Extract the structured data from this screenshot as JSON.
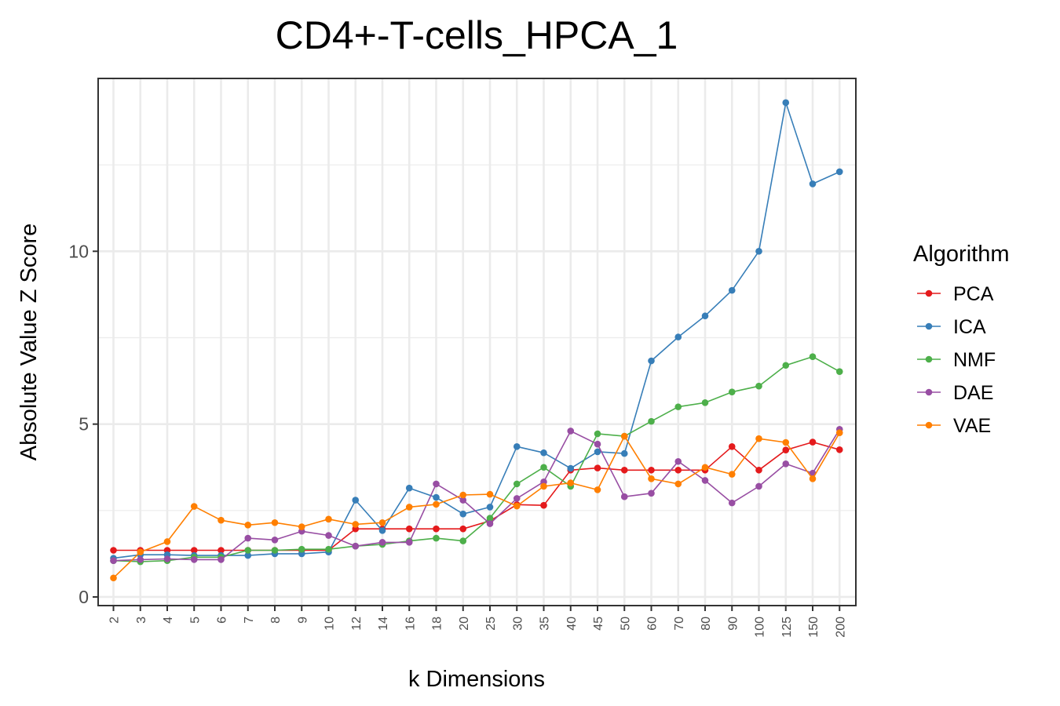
{
  "chart_data": {
    "type": "line",
    "title": "CD4+-T-cells_HPCA_1",
    "xlabel": "k Dimensions",
    "ylabel": "Absolute Value Z Score",
    "x_scale": "categorical",
    "categories": [
      "2",
      "3",
      "4",
      "5",
      "6",
      "7",
      "8",
      "9",
      "10",
      "12",
      "14",
      "16",
      "18",
      "20",
      "25",
      "30",
      "35",
      "40",
      "45",
      "50",
      "60",
      "70",
      "80",
      "90",
      "100",
      "125",
      "150",
      "200"
    ],
    "ylim": [
      -0.25,
      15.0
    ],
    "yticks": [
      0,
      5,
      10
    ],
    "y_minor_ticks": [
      2.5,
      7.5,
      12.5
    ],
    "grid": true,
    "legend": {
      "title": "Algorithm",
      "placement": "right"
    },
    "series": [
      {
        "name": "PCA",
        "color": "#e41a1c",
        "values": [
          1.35,
          1.35,
          1.35,
          1.35,
          1.35,
          1.35,
          1.35,
          1.35,
          1.35,
          1.97,
          1.97,
          1.97,
          1.97,
          1.97,
          2.2,
          2.67,
          2.65,
          3.67,
          3.73,
          3.67,
          3.67,
          3.67,
          3.67,
          4.35,
          3.67,
          4.25,
          4.48,
          4.26
        ]
      },
      {
        "name": "ICA",
        "color": "#377eb8",
        "values": [
          1.12,
          1.22,
          1.22,
          1.2,
          1.2,
          1.2,
          1.25,
          1.25,
          1.3,
          2.8,
          1.92,
          3.15,
          2.88,
          2.4,
          2.6,
          4.35,
          4.17,
          3.72,
          4.2,
          4.15,
          6.83,
          7.52,
          8.13,
          8.87,
          10.0,
          14.3,
          11.95,
          12.3
        ]
      },
      {
        "name": "NMF",
        "color": "#4daf4a",
        "values": [
          1.05,
          1.02,
          1.05,
          1.15,
          1.15,
          1.35,
          1.35,
          1.38,
          1.38,
          1.47,
          1.52,
          1.62,
          1.7,
          1.62,
          2.28,
          3.27,
          3.75,
          3.2,
          4.72,
          4.65,
          5.08,
          5.5,
          5.62,
          5.93,
          6.1,
          6.7,
          6.95,
          6.52
        ]
      },
      {
        "name": "DAE",
        "color": "#984ea3",
        "values": [
          1.05,
          1.08,
          1.1,
          1.08,
          1.08,
          1.7,
          1.65,
          1.9,
          1.78,
          1.47,
          1.58,
          1.58,
          3.27,
          2.8,
          2.12,
          2.85,
          3.33,
          4.8,
          4.42,
          2.9,
          3.0,
          3.92,
          3.37,
          2.72,
          3.2,
          3.85,
          3.58,
          4.85
        ]
      },
      {
        "name": "VAE",
        "color": "#ff7f00",
        "values": [
          0.55,
          1.3,
          1.6,
          2.62,
          2.22,
          2.08,
          2.15,
          2.03,
          2.25,
          2.1,
          2.15,
          2.6,
          2.68,
          2.95,
          2.97,
          2.63,
          3.2,
          3.3,
          3.1,
          4.65,
          3.42,
          3.27,
          3.75,
          3.55,
          4.58,
          4.47,
          3.42,
          4.75
        ]
      }
    ]
  }
}
